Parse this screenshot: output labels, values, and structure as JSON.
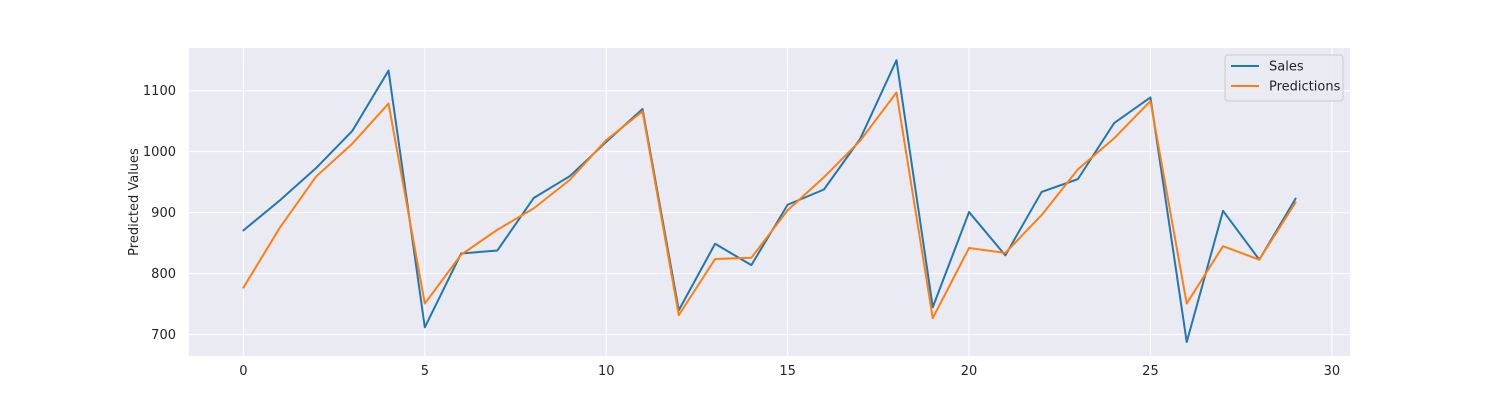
{
  "chart_data": {
    "type": "line",
    "title": "",
    "xlabel": "",
    "ylabel": "Predicted Values",
    "xlim": [
      -1.5,
      30.5
    ],
    "ylim": [
      665,
      1170
    ],
    "xticks": [
      0,
      5,
      10,
      15,
      20,
      25,
      30
    ],
    "yticks": [
      700,
      800,
      900,
      1000,
      1100
    ],
    "grid": true,
    "legend_position": "top-right",
    "x": [
      0,
      1,
      2,
      3,
      4,
      5,
      6,
      7,
      8,
      9,
      10,
      11,
      12,
      13,
      14,
      15,
      16,
      17,
      18,
      19,
      20,
      21,
      22,
      23,
      24,
      25,
      26,
      27,
      28,
      29
    ],
    "series": [
      {
        "name": "Sales",
        "color": "#1f77b4",
        "values": [
          871,
          920,
          973,
          1034,
          1133,
          712,
          833,
          838,
          924,
          960,
          1016,
          1070,
          740,
          849,
          814,
          913,
          938,
          1021,
          1150,
          745,
          901,
          830,
          934,
          955,
          1047,
          1089,
          688,
          903,
          823,
          923
        ]
      },
      {
        "name": "Predictions",
        "color": "#ff7f0e",
        "values": [
          777,
          875,
          959,
          1013,
          1079,
          751,
          831,
          872,
          907,
          954,
          1019,
          1066,
          732,
          824,
          826,
          904,
          958,
          1018,
          1097,
          727,
          842,
          834,
          896,
          971,
          1022,
          1083,
          751,
          845,
          823,
          917
        ]
      }
    ]
  }
}
